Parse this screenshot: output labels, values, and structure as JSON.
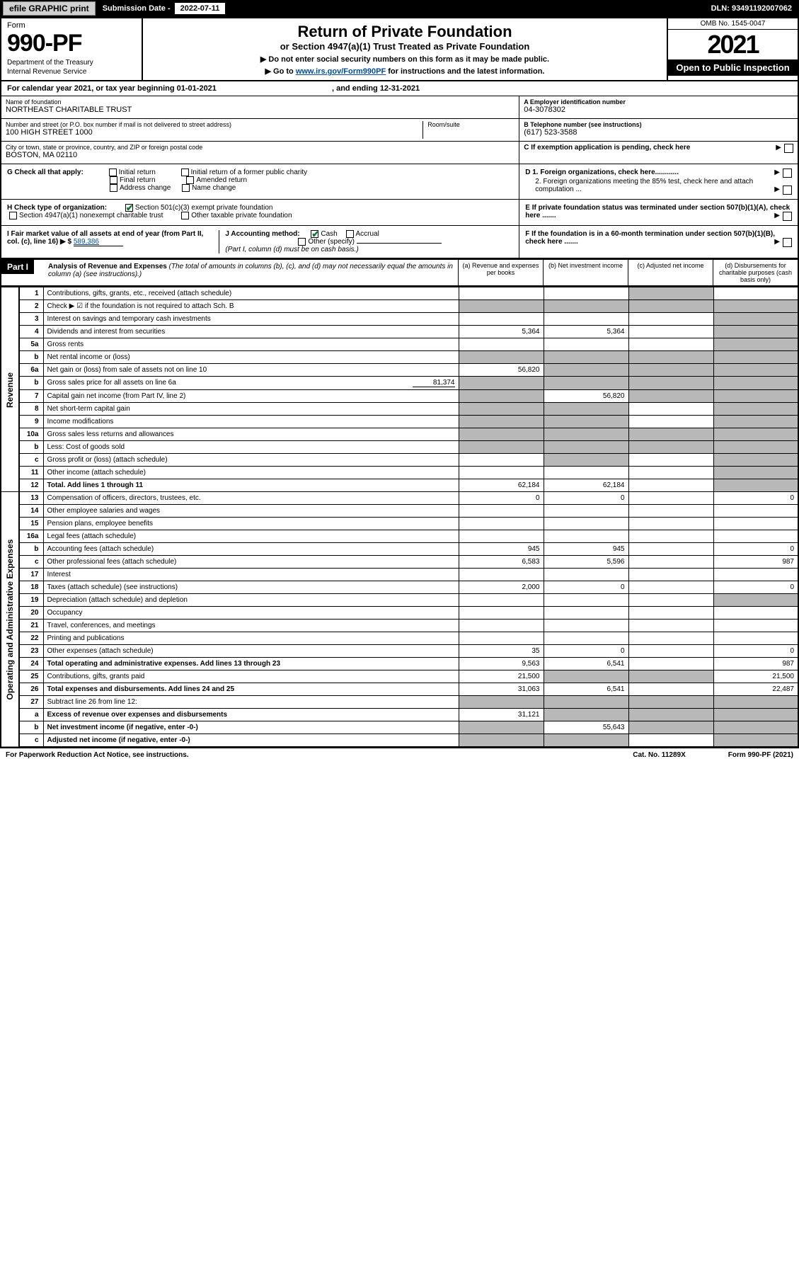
{
  "topbar": {
    "efile": "efile GRAPHIC print",
    "sub_label": "Submission Date - ",
    "sub_date": "2022-07-11",
    "dln": "DLN: 93491192007062"
  },
  "header": {
    "form_label": "Form",
    "form_num": "990-PF",
    "dept1": "Department of the Treasury",
    "dept2": "Internal Revenue Service",
    "title": "Return of Private Foundation",
    "sub1": "or Section 4947(a)(1) Trust Treated as Private Foundation",
    "sub2a": "▶ Do not enter social security numbers on this form as it may be made public.",
    "sub2b": "▶ Go to ",
    "link": "www.irs.gov/Form990PF",
    "sub2c": " for instructions and the latest information.",
    "omb": "OMB No. 1545-0047",
    "year": "2021",
    "open": "Open to Public Inspection"
  },
  "cal": "For calendar year 2021, or tax year beginning 01-01-2021",
  "cal_end": ", and ending 12-31-2021",
  "info": {
    "name_label": "Name of foundation",
    "name": "NORTHEAST CHARITABLE TRUST",
    "a_label": "A Employer identification number",
    "ein": "04-3078302",
    "addr_label": "Number and street (or P.O. box number if mail is not delivered to street address)",
    "addr": "100 HIGH STREET 1000",
    "room_label": "Room/suite",
    "b_label": "B Telephone number (see instructions)",
    "phone": "(617) 523-3588",
    "city_label": "City or town, state or province, country, and ZIP or foreign postal code",
    "city": "BOSTON, MA  02110",
    "c_label": "C If exemption application is pending, check here"
  },
  "g": {
    "label": "G Check all that apply:",
    "opts": [
      "Initial return",
      "Final return",
      "Address change",
      "Initial return of a former public charity",
      "Amended return",
      "Name change"
    ]
  },
  "d": {
    "d1": "D 1. Foreign organizations, check here............",
    "d2": "2. Foreign organizations meeting the 85% test, check here and attach computation ..."
  },
  "h": {
    "label": "H Check type of organization:",
    "opt1": "Section 501(c)(3) exempt private foundation",
    "opt2": "Section 4947(a)(1) nonexempt charitable trust",
    "opt3": "Other taxable private foundation"
  },
  "e": "E If private foundation status was terminated under section 507(b)(1)(A), check here .......",
  "i": {
    "label": "I Fair market value of all assets at end of year (from Part II, col. (c), line 16) ▶ $",
    "val": "589,386"
  },
  "j": {
    "label": "J Accounting method:",
    "cash": "Cash",
    "accrual": "Accrual",
    "other": "Other (specify)",
    "note": "(Part I, column (d) must be on cash basis.)"
  },
  "f": "F If the foundation is in a 60-month termination under section 507(b)(1)(B), check here .......",
  "part1": {
    "label": "Part I",
    "title": "Analysis of Revenue and Expenses",
    "note": " (The total of amounts in columns (b), (c), and (d) may not necessarily equal the amounts in column (a) (see instructions).)",
    "cols": [
      "(a) Revenue and expenses per books",
      "(b) Net investment income",
      "(c) Adjusted net income",
      "(d) Disbursements for charitable purposes (cash basis only)"
    ]
  },
  "sides": {
    "rev": "Revenue",
    "exp": "Operating and Administrative Expenses"
  },
  "rows": [
    {
      "n": "1",
      "d": "Contributions, gifts, grants, etc., received (attach schedule)",
      "a": "",
      "b": "",
      "c_grey": true,
      "e": ""
    },
    {
      "n": "2",
      "d": "Check ▶ ☑ if the foundation is not required to attach Sch. B",
      "bold_check": true,
      "allgrey": true
    },
    {
      "n": "3",
      "d": "Interest on savings and temporary cash investments",
      "a": "",
      "b": "",
      "c": "",
      "e_grey": true
    },
    {
      "n": "4",
      "d": "Dividends and interest from securities",
      "a": "5,364",
      "b": "5,364",
      "c": "",
      "e_grey": true
    },
    {
      "n": "5a",
      "d": "Gross rents",
      "a": "",
      "b": "",
      "c": "",
      "e_grey": true
    },
    {
      "n": "b",
      "d": "Net rental income or (loss)",
      "allgrey": true
    },
    {
      "n": "6a",
      "d": "Net gain or (loss) from sale of assets not on line 10",
      "a": "56,820",
      "b_grey": true,
      "c_grey": true,
      "e_grey": true
    },
    {
      "n": "b",
      "d": "Gross sales price for all assets on line 6a",
      "inline": "81,374",
      "allgrey": true
    },
    {
      "n": "7",
      "d": "Capital gain net income (from Part IV, line 2)",
      "a_grey": true,
      "b": "56,820",
      "c_grey": true,
      "e_grey": true
    },
    {
      "n": "8",
      "d": "Net short-term capital gain",
      "a_grey": true,
      "b_grey": true,
      "c": "",
      "e_grey": true
    },
    {
      "n": "9",
      "d": "Income modifications",
      "a_grey": true,
      "b_grey": true,
      "c": "",
      "e_grey": true
    },
    {
      "n": "10a",
      "d": "Gross sales less returns and allowances",
      "allgrey": true
    },
    {
      "n": "b",
      "d": "Less: Cost of goods sold",
      "allgrey": true
    },
    {
      "n": "c",
      "d": "Gross profit or (loss) (attach schedule)",
      "a": "",
      "b_grey": true,
      "c": "",
      "e_grey": true
    },
    {
      "n": "11",
      "d": "Other income (attach schedule)",
      "a": "",
      "b": "",
      "c": "",
      "e_grey": true
    },
    {
      "n": "12",
      "d": "Total. Add lines 1 through 11",
      "bold": true,
      "a": "62,184",
      "b": "62,184",
      "c": "",
      "e_grey": true
    },
    {
      "n": "13",
      "d": "Compensation of officers, directors, trustees, etc.",
      "a": "0",
      "b": "0",
      "c": "",
      "e": "0"
    },
    {
      "n": "14",
      "d": "Other employee salaries and wages",
      "a": "",
      "b": "",
      "c": "",
      "e": ""
    },
    {
      "n": "15",
      "d": "Pension plans, employee benefits",
      "a": "",
      "b": "",
      "c": "",
      "e": ""
    },
    {
      "n": "16a",
      "d": "Legal fees (attach schedule)",
      "a": "",
      "b": "",
      "c": "",
      "e": ""
    },
    {
      "n": "b",
      "d": "Accounting fees (attach schedule)",
      "a": "945",
      "b": "945",
      "c": "",
      "e": "0"
    },
    {
      "n": "c",
      "d": "Other professional fees (attach schedule)",
      "a": "6,583",
      "b": "5,596",
      "c": "",
      "e": "987"
    },
    {
      "n": "17",
      "d": "Interest",
      "a": "",
      "b": "",
      "c": "",
      "e": ""
    },
    {
      "n": "18",
      "d": "Taxes (attach schedule) (see instructions)",
      "a": "2,000",
      "b": "0",
      "c": "",
      "e": "0"
    },
    {
      "n": "19",
      "d": "Depreciation (attach schedule) and depletion",
      "a": "",
      "b": "",
      "c": "",
      "e_grey": true
    },
    {
      "n": "20",
      "d": "Occupancy",
      "a": "",
      "b": "",
      "c": "",
      "e": ""
    },
    {
      "n": "21",
      "d": "Travel, conferences, and meetings",
      "a": "",
      "b": "",
      "c": "",
      "e": ""
    },
    {
      "n": "22",
      "d": "Printing and publications",
      "a": "",
      "b": "",
      "c": "",
      "e": ""
    },
    {
      "n": "23",
      "d": "Other expenses (attach schedule)",
      "a": "35",
      "b": "0",
      "c": "",
      "e": "0"
    },
    {
      "n": "24",
      "d": "Total operating and administrative expenses. Add lines 13 through 23",
      "bold": true,
      "a": "9,563",
      "b": "6,541",
      "c": "",
      "e": "987"
    },
    {
      "n": "25",
      "d": "Contributions, gifts, grants paid",
      "a": "21,500",
      "b_grey": true,
      "c_grey": true,
      "e": "21,500"
    },
    {
      "n": "26",
      "d": "Total expenses and disbursements. Add lines 24 and 25",
      "bold": true,
      "a": "31,063",
      "b": "6,541",
      "c": "",
      "e": "22,487"
    },
    {
      "n": "27",
      "d": "Subtract line 26 from line 12:",
      "allgrey": true
    },
    {
      "n": "a",
      "d": "Excess of revenue over expenses and disbursements",
      "bold": true,
      "a": "31,121",
      "b_grey": true,
      "c_grey": true,
      "e_grey": true
    },
    {
      "n": "b",
      "d": "Net investment income (if negative, enter -0-)",
      "bold": true,
      "a_grey": true,
      "b": "55,643",
      "c_grey": true,
      "e_grey": true
    },
    {
      "n": "c",
      "d": "Adjusted net income (if negative, enter -0-)",
      "bold": true,
      "a_grey": true,
      "b_grey": true,
      "c": "",
      "e_grey": true
    }
  ],
  "footer": {
    "left": "For Paperwork Reduction Act Notice, see instructions.",
    "mid": "Cat. No. 11289X",
    "right": "Form 990-PF (2021)"
  }
}
